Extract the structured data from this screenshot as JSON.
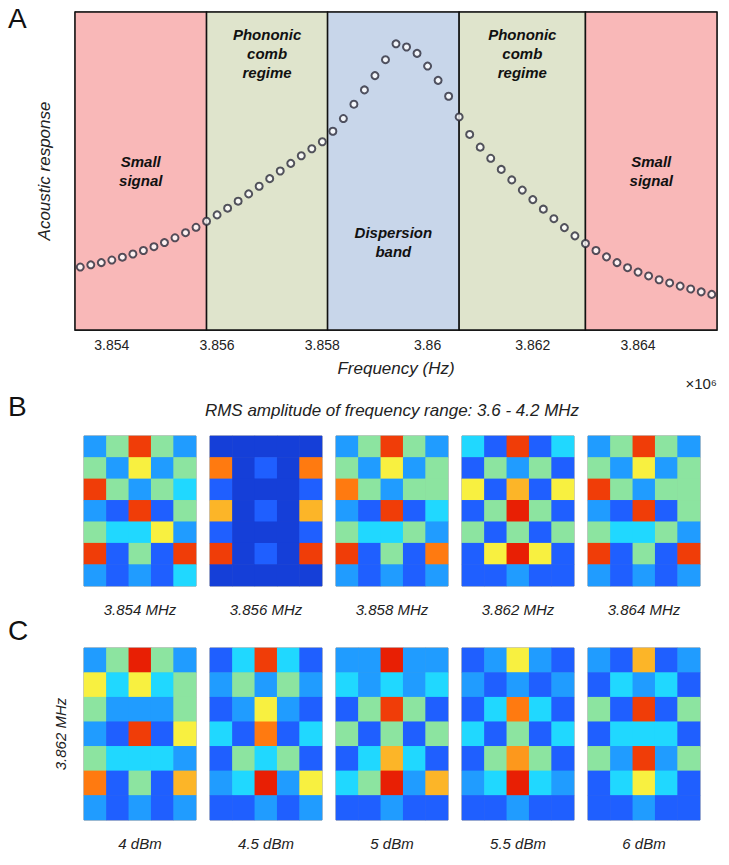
{
  "panel_letters": [
    "A",
    "B",
    "C"
  ],
  "chart_data": {
    "type": "scatter",
    "x_label": "Frequency (Hz)",
    "y_label": "Acoustic response",
    "x_multiplier": "×10⁶",
    "marker": "circle",
    "color": "#2a2a3a",
    "grid": false,
    "tick_labels": "x",
    "xlim": [
      3853300,
      3865500
    ],
    "xticks": [
      {
        "value": 3854000,
        "label": "3.854"
      },
      {
        "value": 3856000,
        "label": "3.856"
      },
      {
        "value": 3858000,
        "label": "3.858"
      },
      {
        "value": 3860000,
        "label": "3.86"
      },
      {
        "value": 3862000,
        "label": "3.862"
      },
      {
        "value": 3864000,
        "label": "3.864"
      }
    ],
    "ylim": [
      0,
      1
    ],
    "yticks": [
      0,
      0.2,
      0.4,
      0.6,
      0.8,
      1
    ],
    "x": [
      3853400,
      3853600,
      3853800,
      3854000,
      3854200,
      3854400,
      3854600,
      3854800,
      3855000,
      3855200,
      3855400,
      3855600,
      3855800,
      3856000,
      3856200,
      3856400,
      3856600,
      3856800,
      3857000,
      3857200,
      3857400,
      3857600,
      3857800,
      3858000,
      3858200,
      3858400,
      3858600,
      3858800,
      3859000,
      3859200,
      3859400,
      3859600,
      3859800,
      3860000,
      3860200,
      3860400,
      3860600,
      3860800,
      3861000,
      3861200,
      3861400,
      3861600,
      3861800,
      3862000,
      3862200,
      3862400,
      3862600,
      3862800,
      3863000,
      3863200,
      3863400,
      3863600,
      3863800,
      3864000,
      3864200,
      3864400,
      3864600,
      3864800,
      3865000,
      3865200,
      3865400
    ],
    "values": [
      0.198,
      0.205,
      0.212,
      0.22,
      0.229,
      0.239,
      0.25,
      0.262,
      0.275,
      0.29,
      0.306,
      0.323,
      0.342,
      0.362,
      0.383,
      0.405,
      0.428,
      0.452,
      0.476,
      0.5,
      0.524,
      0.548,
      0.57,
      0.592,
      0.625,
      0.665,
      0.71,
      0.755,
      0.8,
      0.85,
      0.9,
      0.89,
      0.87,
      0.83,
      0.785,
      0.735,
      0.67,
      0.615,
      0.575,
      0.54,
      0.505,
      0.472,
      0.44,
      0.41,
      0.38,
      0.35,
      0.322,
      0.296,
      0.272,
      0.25,
      0.23,
      0.212,
      0.196,
      0.182,
      0.17,
      0.158,
      0.148,
      0.138,
      0.129,
      0.12,
      0.112
    ],
    "regions": [
      {
        "label": "Small signal",
        "from": 3853300,
        "to": 3855800,
        "color": "#f9b8b8"
      },
      {
        "label": "Phononic comb regime",
        "from": 3855800,
        "to": 3858100,
        "color": "#dfe4cc"
      },
      {
        "label": "Dispersion band",
        "from": 3858100,
        "to": 3860600,
        "color": "#c8d6ea"
      },
      {
        "label": "Phononic comb regime",
        "from": 3860600,
        "to": 3863000,
        "color": "#dfe4cc"
      },
      {
        "label": "Small signal",
        "from": 3863000,
        "to": 3865500,
        "color": "#f9b8b8"
      }
    ]
  },
  "maps": {
    "amplitude_range": [
      0,
      1
    ],
    "colors": [
      "#0a1fb0",
      "#1f5fff",
      "#20d8ff",
      "#f8f040",
      "#ff7a10",
      "#e00000"
    ],
    "B": {
      "title": "RMS amplitude of frequency range: 3.6 - 4.2 MHz",
      "images": [
        {
          "label": "3.854 MHz",
          "cells": [
            [
              0.3,
              0.5,
              0.9,
              0.5,
              0.3
            ],
            [
              0.5,
              0.3,
              0.6,
              0.3,
              0.5
            ],
            [
              0.9,
              0.5,
              0.3,
              0.5,
              0.4
            ],
            [
              0.3,
              0.2,
              0.9,
              0.2,
              0.5
            ],
            [
              0.5,
              0.4,
              0.4,
              0.6,
              0.3
            ],
            [
              0.9,
              0.2,
              0.5,
              0.2,
              0.9
            ],
            [
              0.3,
              0.2,
              0.3,
              0.2,
              0.4
            ]
          ]
        },
        {
          "label": "3.856 MHz",
          "cells": [
            [
              0.1,
              0.1,
              0.1,
              0.1,
              0.1
            ],
            [
              0.8,
              0.1,
              0.2,
              0.1,
              0.8
            ],
            [
              0.2,
              0.1,
              0.1,
              0.1,
              0.2
            ],
            [
              0.7,
              0.1,
              0.2,
              0.1,
              0.7
            ],
            [
              0.2,
              0.1,
              0.1,
              0.1,
              0.2
            ],
            [
              0.9,
              0.1,
              0.2,
              0.1,
              0.9
            ],
            [
              0.1,
              0.1,
              0.1,
              0.1,
              0.1
            ]
          ]
        },
        {
          "label": "3.858 MHz",
          "cells": [
            [
              0.3,
              0.5,
              0.9,
              0.5,
              0.3
            ],
            [
              0.5,
              0.3,
              0.6,
              0.3,
              0.5
            ],
            [
              0.8,
              0.5,
              0.3,
              0.5,
              0.5
            ],
            [
              0.3,
              0.2,
              0.9,
              0.2,
              0.4
            ],
            [
              0.5,
              0.4,
              0.4,
              0.5,
              0.3
            ],
            [
              0.9,
              0.2,
              0.5,
              0.2,
              0.8
            ],
            [
              0.3,
              0.2,
              0.3,
              0.2,
              0.3
            ]
          ]
        },
        {
          "label": "3.862 MHz",
          "cells": [
            [
              0.4,
              0.2,
              0.9,
              0.2,
              0.4
            ],
            [
              0.2,
              0.5,
              0.3,
              0.5,
              0.2
            ],
            [
              0.6,
              0.2,
              0.7,
              0.2,
              0.6
            ],
            [
              0.2,
              0.5,
              0.95,
              0.5,
              0.2
            ],
            [
              0.5,
              0.2,
              0.5,
              0.2,
              0.5
            ],
            [
              0.2,
              0.6,
              0.95,
              0.6,
              0.2
            ],
            [
              0.2,
              0.2,
              0.3,
              0.2,
              0.2
            ]
          ]
        },
        {
          "label": "3.864 MHz",
          "cells": [
            [
              0.3,
              0.5,
              0.9,
              0.5,
              0.3
            ],
            [
              0.5,
              0.3,
              0.6,
              0.3,
              0.5
            ],
            [
              0.9,
              0.5,
              0.3,
              0.5,
              0.5
            ],
            [
              0.3,
              0.2,
              0.9,
              0.2,
              0.5
            ],
            [
              0.5,
              0.4,
              0.4,
              0.5,
              0.3
            ],
            [
              0.9,
              0.2,
              0.5,
              0.2,
              0.9
            ],
            [
              0.3,
              0.2,
              0.3,
              0.2,
              0.3
            ]
          ]
        }
      ]
    },
    "C": {
      "row_label": "3.862 MHz",
      "images": [
        {
          "label": "4 dBm",
          "cells": [
            [
              0.3,
              0.5,
              0.95,
              0.5,
              0.3
            ],
            [
              0.6,
              0.4,
              0.6,
              0.4,
              0.5
            ],
            [
              0.5,
              0.3,
              0.3,
              0.3,
              0.5
            ],
            [
              0.3,
              0.2,
              0.9,
              0.2,
              0.6
            ],
            [
              0.5,
              0.4,
              0.4,
              0.4,
              0.3
            ],
            [
              0.8,
              0.2,
              0.5,
              0.2,
              0.7
            ],
            [
              0.3,
              0.2,
              0.3,
              0.2,
              0.3
            ]
          ]
        },
        {
          "label": "4.5 dBm",
          "cells": [
            [
              0.2,
              0.4,
              0.9,
              0.4,
              0.2
            ],
            [
              0.3,
              0.5,
              0.3,
              0.5,
              0.3
            ],
            [
              0.2,
              0.3,
              0.6,
              0.3,
              0.2
            ],
            [
              0.4,
              0.2,
              0.8,
              0.2,
              0.4
            ],
            [
              0.2,
              0.5,
              0.4,
              0.5,
              0.2
            ],
            [
              0.3,
              0.4,
              0.95,
              0.3,
              0.6
            ],
            [
              0.2,
              0.2,
              0.3,
              0.2,
              0.3
            ]
          ]
        },
        {
          "label": "5 dBm",
          "cells": [
            [
              0.3,
              0.3,
              0.95,
              0.3,
              0.3
            ],
            [
              0.4,
              0.3,
              0.4,
              0.3,
              0.4
            ],
            [
              0.2,
              0.5,
              0.9,
              0.5,
              0.2
            ],
            [
              0.5,
              0.2,
              0.5,
              0.2,
              0.5
            ],
            [
              0.2,
              0.4,
              0.7,
              0.4,
              0.2
            ],
            [
              0.4,
              0.5,
              0.95,
              0.3,
              0.7
            ],
            [
              0.2,
              0.2,
              0.3,
              0.2,
              0.2
            ]
          ]
        },
        {
          "label": "5.5 dBm",
          "cells": [
            [
              0.2,
              0.3,
              0.6,
              0.3,
              0.2
            ],
            [
              0.3,
              0.2,
              0.3,
              0.2,
              0.3
            ],
            [
              0.2,
              0.4,
              0.8,
              0.4,
              0.2
            ],
            [
              0.4,
              0.2,
              0.5,
              0.2,
              0.4
            ],
            [
              0.2,
              0.5,
              0.75,
              0.5,
              0.2
            ],
            [
              0.3,
              0.4,
              0.95,
              0.4,
              0.3
            ],
            [
              0.2,
              0.2,
              0.3,
              0.2,
              0.2
            ]
          ]
        },
        {
          "label": "6 dBm",
          "cells": [
            [
              0.3,
              0.2,
              0.7,
              0.2,
              0.3
            ],
            [
              0.2,
              0.4,
              0.3,
              0.4,
              0.2
            ],
            [
              0.5,
              0.2,
              0.9,
              0.2,
              0.5
            ],
            [
              0.2,
              0.4,
              0.4,
              0.4,
              0.2
            ],
            [
              0.5,
              0.3,
              0.9,
              0.3,
              0.5
            ],
            [
              0.2,
              0.4,
              0.6,
              0.4,
              0.2
            ],
            [
              0.2,
              0.2,
              0.3,
              0.2,
              0.2
            ]
          ]
        }
      ]
    }
  }
}
